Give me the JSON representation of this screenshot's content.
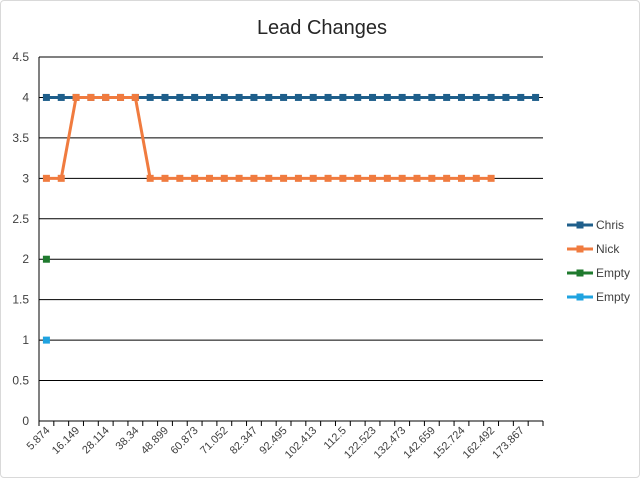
{
  "chart_data": {
    "type": "line",
    "title": "Lead Changes",
    "xlabel": "",
    "ylabel": "",
    "ylim": [
      0,
      4.5
    ],
    "yticks": [
      "0",
      "0.5",
      "1",
      "1.5",
      "2",
      "2.5",
      "3",
      "3.5",
      "4",
      "4.5"
    ],
    "grid": true,
    "legend_position": "right",
    "category_count": 34,
    "x_tick_labels": [
      "5.874",
      "16.149",
      "28.114",
      "38.34",
      "48.899",
      "60.873",
      "71.052",
      "82.347",
      "92.495",
      "102.413",
      "112.5",
      "122.523",
      "132.473",
      "142.659",
      "152.724",
      "162.492",
      "173.867"
    ],
    "series": [
      {
        "name": "Chris",
        "color": "#1f5f8b",
        "values": [
          4,
          4,
          4,
          4,
          4,
          4,
          4,
          4,
          4,
          4,
          4,
          4,
          4,
          4,
          4,
          4,
          4,
          4,
          4,
          4,
          4,
          4,
          4,
          4,
          4,
          4,
          4,
          4,
          4,
          4,
          4,
          4,
          4,
          4
        ]
      },
      {
        "name": "Nick",
        "color": "#f07b3f",
        "values": [
          3,
          3,
          4,
          4,
          4,
          4,
          4,
          3,
          3,
          3,
          3,
          3,
          3,
          3,
          3,
          3,
          3,
          3,
          3,
          3,
          3,
          3,
          3,
          3,
          3,
          3,
          3,
          3,
          3,
          3,
          3,
          null,
          null,
          null
        ]
      },
      {
        "name": "Empty",
        "color": "#1f7a2e",
        "values": [
          2
        ]
      },
      {
        "name": "Empty",
        "color": "#1fa3e0",
        "values": [
          1
        ]
      }
    ]
  }
}
